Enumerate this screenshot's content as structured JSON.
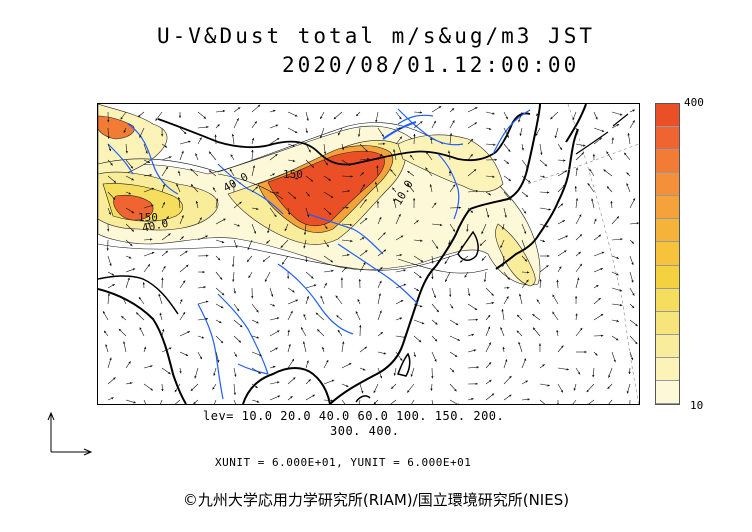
{
  "header": {
    "title": "U-V&Dust total m/s&ug/m3 JST",
    "datetime": "2020/08/01.12:00:00"
  },
  "colorbar": {
    "max_label": "400",
    "min_label": "10",
    "colors": [
      "#fdf8d8",
      "#fbf3b8",
      "#f9ec9a",
      "#f7e57c",
      "#f5dd5e",
      "#f3d13f",
      "#f6c33a",
      "#f6b33a",
      "#f5a23a",
      "#f4903a",
      "#f27c36",
      "#ef6430",
      "#ea4f25"
    ]
  },
  "contours": {
    "levels_label": "lev= 10.0 20.0 40.0 60.0 100. 150. 200.",
    "levels_label_2": "300. 400.",
    "inline_labels": [
      "40.0",
      "150",
      "40.0",
      "150",
      "10.0"
    ]
  },
  "vectors": {
    "units_label": "XUNIT = 6.000E+01, YUNIT = 6.000E+01"
  },
  "footer": {
    "credit": "©九州大学応用力学研究所(RIAM)/国立環境研究所(NIES)"
  }
}
